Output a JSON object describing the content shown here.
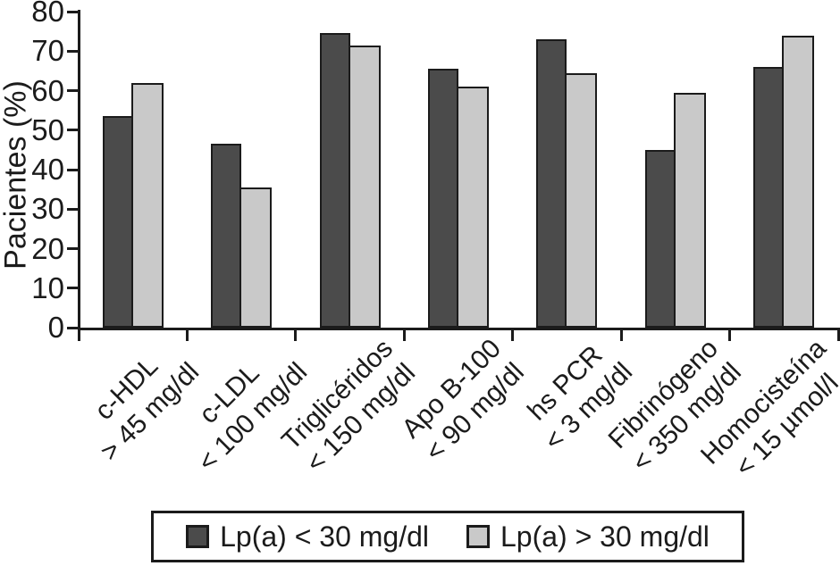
{
  "figure": {
    "background": "#ffffff",
    "text_color": "#1b1b1b",
    "axis_color": "#1b1b1b"
  },
  "chart_data": {
    "type": "bar",
    "title": "",
    "xlabel": "",
    "ylabel": "Pacientes (%)",
    "ylim": [
      0,
      80
    ],
    "yticks": [
      0,
      10,
      20,
      30,
      40,
      50,
      60,
      70,
      80
    ],
    "grid": false,
    "legend_position": "bottom",
    "bar_outline": "#1b1b1b",
    "categories": [
      {
        "name": "c-HDL",
        "threshold": "> 45 mg/dl"
      },
      {
        "name": "c-LDL",
        "threshold": "< 100 mg/dl"
      },
      {
        "name": "Triglicéridos",
        "threshold": "< 150 mg/dl"
      },
      {
        "name": "Apo B-100",
        "threshold": "< 90 mg/dl"
      },
      {
        "name": "hs PCR",
        "threshold": "< 3 mg/dl"
      },
      {
        "name": "Fibrinógeno",
        "threshold": "< 350 mg/dl"
      },
      {
        "name": "Homocisteína",
        "threshold": "< 15 µmol/l"
      }
    ],
    "series": [
      {
        "name": "Lp(a) < 30 mg/dl",
        "color": "#4b4b4b",
        "values": [
          53.5,
          46.5,
          74.5,
          65.5,
          73.0,
          45.0,
          66.0
        ]
      },
      {
        "name": "Lp(a) > 30 mg/dl",
        "color": "#c9c9c9",
        "values": [
          62.0,
          35.5,
          71.5,
          61.0,
          64.5,
          59.5,
          74.0
        ]
      }
    ]
  }
}
